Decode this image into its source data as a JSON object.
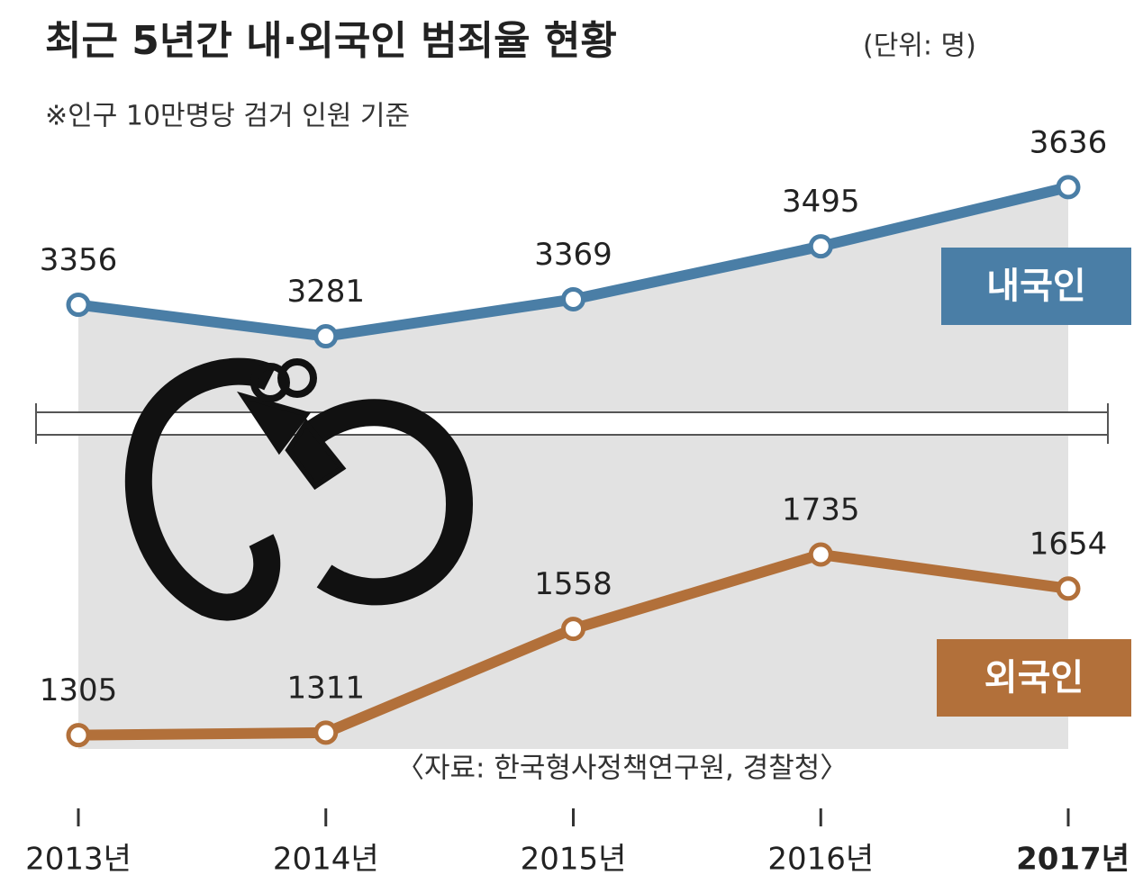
{
  "chart_data": {
    "type": "line",
    "title": "최근 5년간 내·외국인 범죄율 현황",
    "unit": "(단위: 명)",
    "subtitle": "※인구 10만명당 검거 인원 기준",
    "source": "〈자료: 한국형사정책연구원, 경찰청〉",
    "categories": [
      "2013년",
      "2014년",
      "2015년",
      "2016년",
      "2017년"
    ],
    "series": [
      {
        "name": "내국인",
        "color": "#4a7ea6",
        "values": [
          3356,
          3281,
          3369,
          3495,
          3636
        ]
      },
      {
        "name": "외국인",
        "color": "#b2703a",
        "values": [
          1305,
          1311,
          1558,
          1735,
          1654
        ]
      }
    ],
    "ylim": [
      1270,
      3700
    ],
    "ybreak": [
      2020,
      3100
    ]
  }
}
